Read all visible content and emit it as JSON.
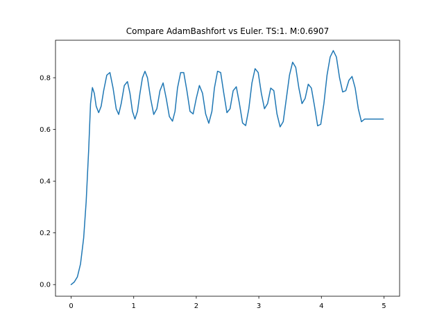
{
  "chart_data": {
    "type": "line",
    "title": "Compare AdamBashfort vs Euler. TS:1. M:0.6907",
    "xlabel": "",
    "ylabel": "",
    "xlim": [
      -0.25,
      5.25
    ],
    "ylim": [
      -0.045,
      0.945
    ],
    "xticks": [
      0,
      1,
      2,
      3,
      4,
      5
    ],
    "xtick_labels": [
      "0",
      "1",
      "2",
      "3",
      "4",
      "5"
    ],
    "yticks": [
      0.0,
      0.2,
      0.4,
      0.6,
      0.8
    ],
    "ytick_labels": [
      "0.0",
      "0.2",
      "0.4",
      "0.6",
      "0.8"
    ],
    "grid": false,
    "colors": {
      "line": "#1f77b4",
      "axes": "#000000",
      "background": "#ffffff"
    },
    "series": [
      {
        "x": [
          0.0,
          0.05,
          0.1,
          0.15,
          0.2,
          0.24,
          0.28,
          0.31,
          0.34,
          0.37,
          0.4,
          0.44,
          0.48,
          0.52,
          0.57,
          0.62,
          0.67,
          0.72,
          0.76,
          0.8,
          0.85,
          0.9,
          0.94,
          0.98,
          1.02,
          1.06,
          1.1,
          1.14,
          1.18,
          1.22,
          1.27,
          1.32,
          1.37,
          1.42,
          1.47,
          1.52,
          1.57,
          1.62,
          1.66,
          1.7,
          1.75,
          1.8,
          1.85,
          1.9,
          1.95,
          2.0,
          2.05,
          2.1,
          2.15,
          2.2,
          2.25,
          2.29,
          2.34,
          2.39,
          2.44,
          2.49,
          2.54,
          2.59,
          2.64,
          2.69,
          2.74,
          2.79,
          2.84,
          2.89,
          2.94,
          2.99,
          3.04,
          3.09,
          3.14,
          3.19,
          3.24,
          3.29,
          3.34,
          3.39,
          3.44,
          3.49,
          3.54,
          3.59,
          3.64,
          3.69,
          3.74,
          3.79,
          3.84,
          3.89,
          3.94,
          3.99,
          4.04,
          4.09,
          4.14,
          4.19,
          4.24,
          4.29,
          4.34,
          4.39,
          4.44,
          4.49,
          4.54,
          4.59,
          4.64,
          4.69,
          4.74,
          4.79,
          4.84,
          4.89,
          4.94,
          4.99
        ],
        "y": [
          0.0,
          0.01,
          0.03,
          0.08,
          0.18,
          0.32,
          0.52,
          0.7,
          0.762,
          0.74,
          0.69,
          0.665,
          0.69,
          0.75,
          0.81,
          0.82,
          0.76,
          0.68,
          0.658,
          0.7,
          0.77,
          0.785,
          0.74,
          0.67,
          0.64,
          0.67,
          0.74,
          0.8,
          0.825,
          0.8,
          0.72,
          0.658,
          0.68,
          0.75,
          0.78,
          0.72,
          0.65,
          0.632,
          0.67,
          0.76,
          0.82,
          0.82,
          0.75,
          0.67,
          0.66,
          0.72,
          0.77,
          0.74,
          0.66,
          0.624,
          0.67,
          0.76,
          0.825,
          0.82,
          0.74,
          0.665,
          0.68,
          0.75,
          0.765,
          0.7,
          0.625,
          0.615,
          0.68,
          0.78,
          0.835,
          0.82,
          0.74,
          0.68,
          0.7,
          0.76,
          0.75,
          0.66,
          0.61,
          0.63,
          0.72,
          0.81,
          0.86,
          0.84,
          0.76,
          0.7,
          0.72,
          0.775,
          0.76,
          0.69,
          0.614,
          0.62,
          0.7,
          0.81,
          0.88,
          0.905,
          0.88,
          0.8,
          0.745,
          0.75,
          0.79,
          0.805,
          0.76,
          0.68,
          0.63,
          0.64,
          0.64,
          0.64,
          0.64,
          0.64,
          0.64,
          0.64
        ]
      }
    ]
  }
}
